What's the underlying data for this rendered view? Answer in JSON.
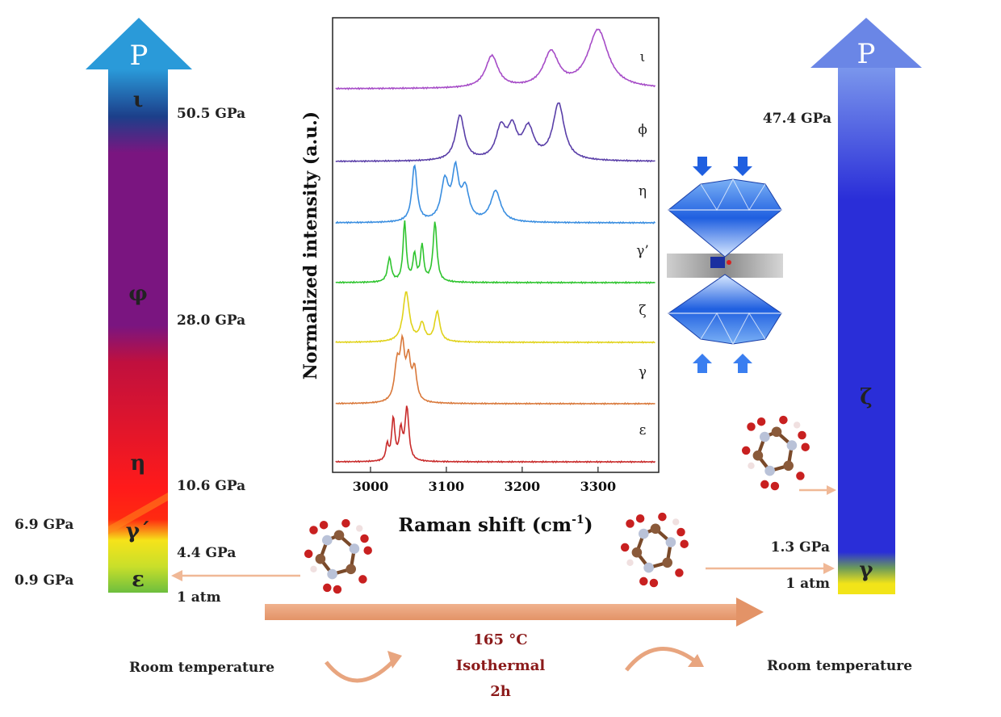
{
  "left_column": {
    "top_label": "P",
    "pressures": {
      "p_iota": "50.5 GPa",
      "p_phi": "28.0 GPa",
      "p_eta": "10.6 GPa",
      "p_gamma_prime": "4.4 GPa",
      "p_left_gamma": "6.9 GPa",
      "p_left_eps": "0.9 GPa",
      "p_atm": "1 atm"
    },
    "phases": {
      "iota": "ι",
      "phi": "φ",
      "eta": "η",
      "gamma_prime": "γ΄",
      "epsilon": "ε"
    },
    "colors": [
      "#2a9ad9",
      "#7a1580",
      "#c8103a",
      "#ff1a1a",
      "#f6e31a",
      "#6dbf3e"
    ]
  },
  "right_column": {
    "top_label": "P",
    "pressures": {
      "p_zeta": "47.4 GPa",
      "p_gamma": "1.3 GPa",
      "p_atm": "1 atm"
    },
    "phases": {
      "zeta": "ζ",
      "gamma": "γ"
    },
    "colors": [
      "#6a86e6",
      "#2a2ed8",
      "#f2e418"
    ]
  },
  "bottom": {
    "left_caption": "Room temperature",
    "right_caption": "Room temperature",
    "conditions": [
      "165 °C",
      "Isothermal",
      "2h"
    ]
  },
  "chart_data": {
    "type": "line",
    "xlabel": "Raman shift (cm",
    "xlabel_sup": "-1",
    "xlabel_close": ")",
    "ylabel": "Normalized intensity (a.u.)",
    "xlim": [
      2950,
      3380
    ],
    "xticks": [
      3000,
      3100,
      3200,
      3300
    ],
    "series": [
      {
        "name": "ι",
        "color": "#a64cc7",
        "peaks": [
          [
            3160,
            0.55,
            10
          ],
          [
            3238,
            0.6,
            12
          ],
          [
            3300,
            1.0,
            16
          ]
        ]
      },
      {
        "name": "ϕ",
        "color": "#5a3fa8",
        "peaks": [
          [
            3118,
            0.8,
            7
          ],
          [
            3172,
            0.55,
            8
          ],
          [
            3187,
            0.5,
            7
          ],
          [
            3208,
            0.55,
            9
          ],
          [
            3248,
            1.0,
            9
          ]
        ]
      },
      {
        "name": "η",
        "color": "#3a8ee0",
        "peaks": [
          [
            3058,
            1.0,
            4
          ],
          [
            3098,
            0.7,
            6
          ],
          [
            3112,
            0.85,
            5
          ],
          [
            3125,
            0.55,
            6
          ],
          [
            3165,
            0.55,
            8
          ]
        ]
      },
      {
        "name": "γ’",
        "color": "#2fc42f",
        "peaks": [
          [
            3025,
            0.4,
            3
          ],
          [
            3045,
            1.0,
            2.5
          ],
          [
            3058,
            0.45,
            2.5
          ],
          [
            3068,
            0.6,
            2.5
          ],
          [
            3085,
            1.0,
            3
          ]
        ]
      },
      {
        "name": "ζ",
        "color": "#e0d21a",
        "peaks": [
          [
            3047,
            1.0,
            5
          ],
          [
            3068,
            0.35,
            4
          ],
          [
            3088,
            0.6,
            4
          ]
        ]
      },
      {
        "name": "γ",
        "color": "#d9783a",
        "peaks": [
          [
            3035,
            0.7,
            4
          ],
          [
            3042,
            1.0,
            3.5
          ],
          [
            3050,
            0.75,
            3.5
          ],
          [
            3058,
            0.6,
            3.5
          ]
        ]
      },
      {
        "name": "ε",
        "color": "#c82a2a",
        "peaks": [
          [
            3022,
            0.3,
            2
          ],
          [
            3030,
            0.8,
            2.5
          ],
          [
            3040,
            0.55,
            2.5
          ],
          [
            3048,
            1.0,
            3
          ]
        ]
      }
    ]
  }
}
